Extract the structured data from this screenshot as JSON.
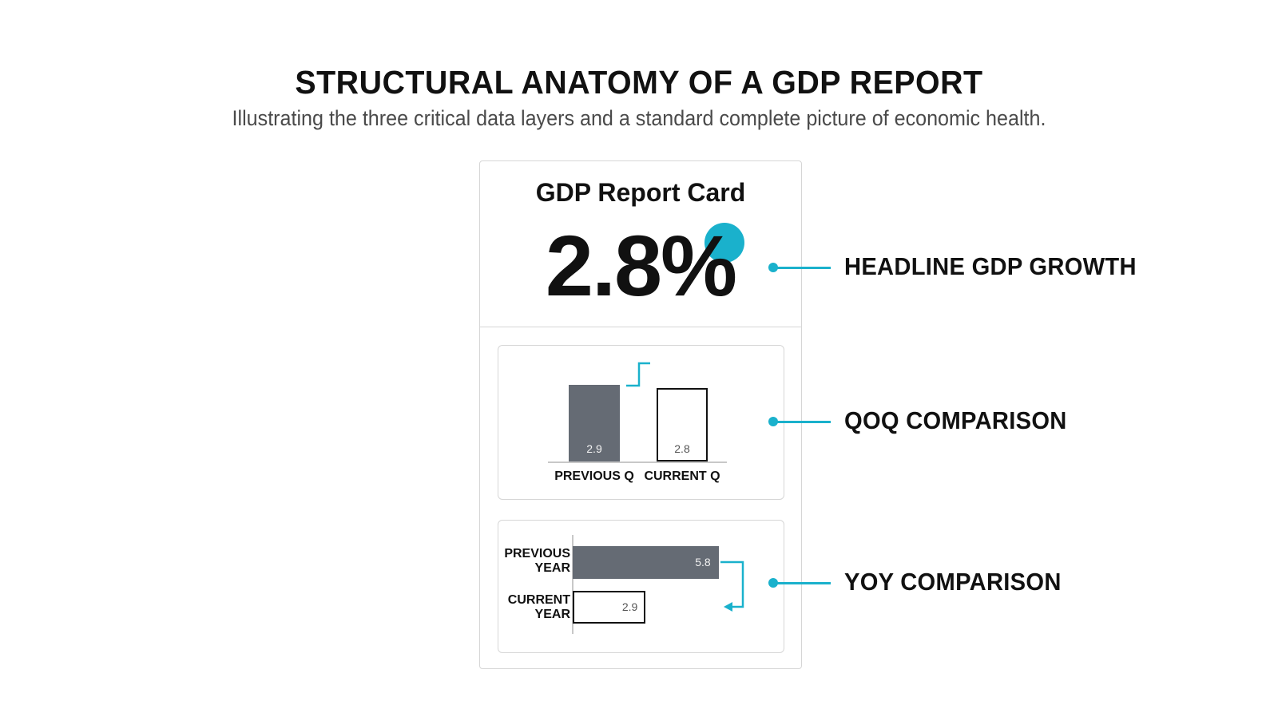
{
  "header": {
    "title": "STRUCTURAL ANATOMY OF A GDP REPORT",
    "subtitle": "Illustrating the three critical data layers and a standard complete picture of economic health."
  },
  "card": {
    "title": "GDP Report Card",
    "headline_value": "2.8%"
  },
  "chart_data": [
    {
      "type": "bar",
      "orientation": "vertical",
      "categories": [
        "PREVIOUS Q",
        "CURRENT Q"
      ],
      "values": [
        2.9,
        2.8
      ],
      "value_labels": [
        "2.9",
        "2.8"
      ]
    },
    {
      "type": "bar",
      "orientation": "horizontal",
      "categories": [
        "PREVIOUS YEAR",
        "CURRENT YEAR"
      ],
      "category_lines": [
        [
          "PREVIOUS",
          "YEAR"
        ],
        [
          "CURRENT",
          "YEAR"
        ]
      ],
      "values": [
        5.8,
        2.9
      ],
      "value_labels": [
        "5.8",
        "2.9"
      ]
    }
  ],
  "callouts": [
    {
      "label": "HEADLINE GDP GROWTH"
    },
    {
      "label": "QOQ COMPARISON"
    },
    {
      "label": "YOY COMPARISON"
    }
  ],
  "colors": {
    "accent": "#1ab1cc",
    "previous_bar": "#656b74",
    "current_bar_border": "#111111"
  }
}
